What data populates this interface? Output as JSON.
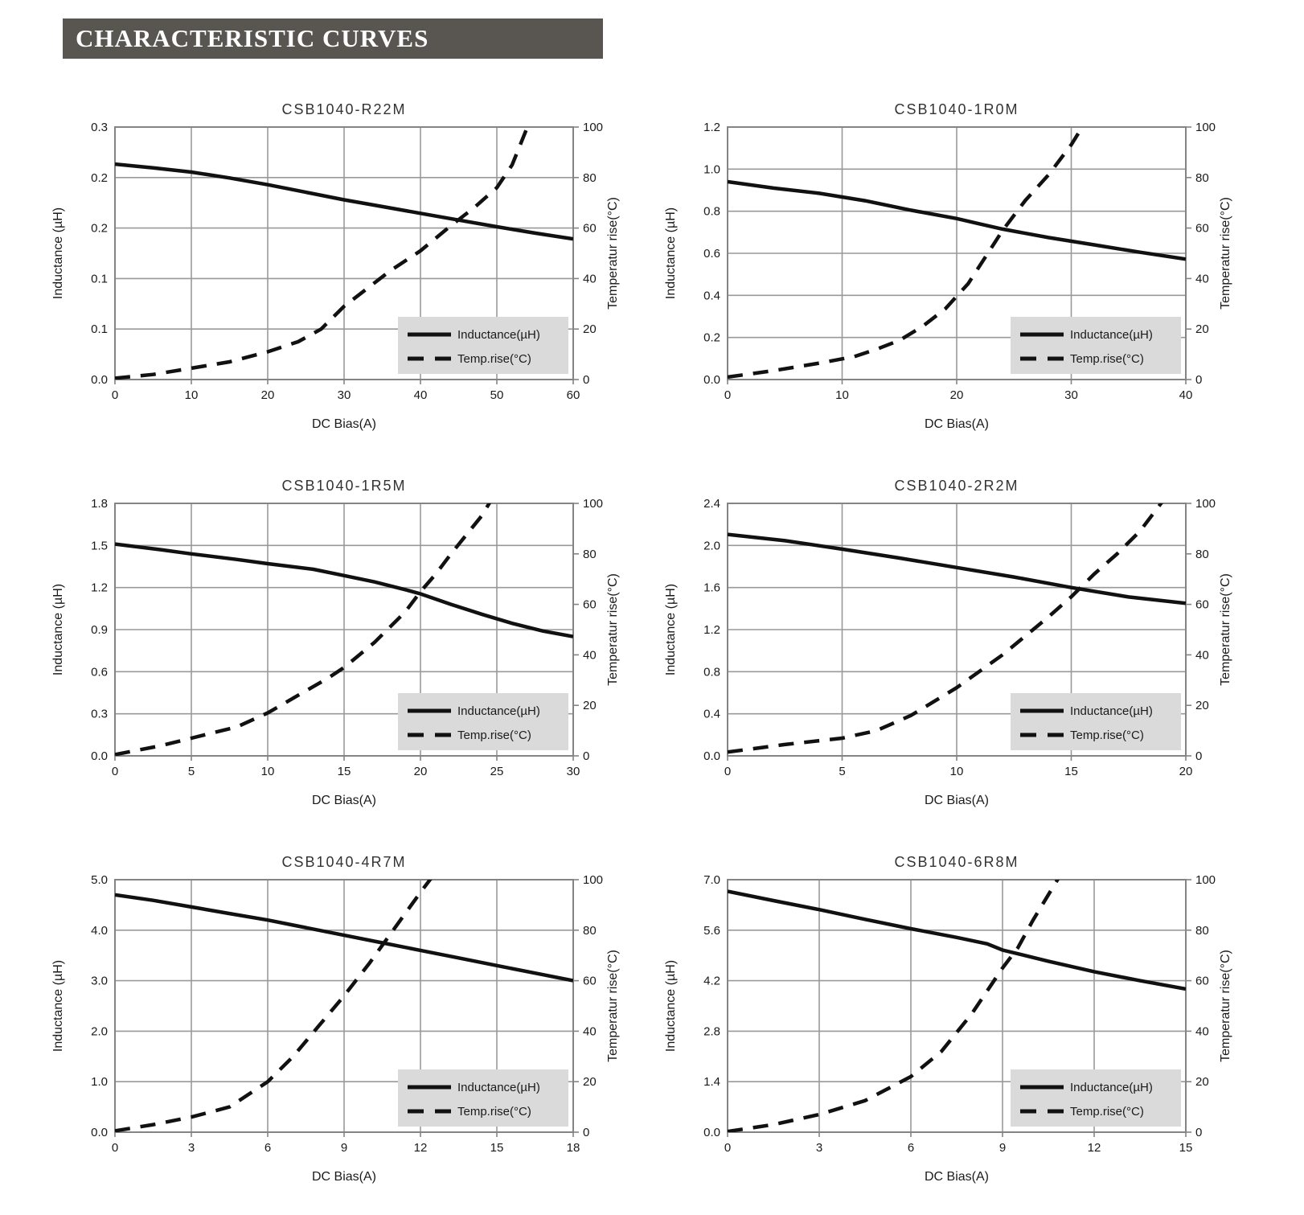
{
  "page": {
    "header": "CHARACTERISTIC CURVES",
    "colors": {
      "header_bg": "#595551",
      "header_fg": "#ffffff",
      "grid": "#999999",
      "border": "#848484",
      "curve": "#111111",
      "legend_bg": "#dadada",
      "text": "#1a1a1a"
    }
  },
  "chart_data": [
    {
      "type": "line",
      "title": "CSB1040-R22M",
      "xlabel": "DC Bias(A)",
      "ylabel_left": "Inductance (µH)",
      "ylabel_right": "Temperatur rise(°C)",
      "legend": [
        "Inductance(µH)",
        "Temp.rise(°C)"
      ],
      "x_range": [
        0,
        60
      ],
      "x_ticks": [
        0,
        10,
        20,
        30,
        40,
        50,
        60
      ],
      "y_left_range": [
        0,
        0.3
      ],
      "y_left_tick_labels": [
        "0.3",
        "0.2",
        "0.2",
        "0.1",
        "0.1",
        "0.0"
      ],
      "y_right_range": [
        0,
        100
      ],
      "y_right_tick_labels": [
        "100",
        "80",
        "60",
        "40",
        "20",
        "0"
      ],
      "series": [
        {
          "name": "Inductance(µH)",
          "axis": "left",
          "style": "solid",
          "points": [
            [
              0,
              0.256
            ],
            [
              5,
              0.2515
            ],
            [
              10,
              0.2465
            ],
            [
              15,
              0.2395
            ],
            [
              20,
              0.2315
            ],
            [
              25,
              0.2225
            ],
            [
              30,
              0.2135
            ],
            [
              35,
              0.2055
            ],
            [
              40,
              0.1975
            ],
            [
              45,
              0.1895
            ],
            [
              50,
              0.1815
            ],
            [
              55,
              0.174
            ],
            [
              60,
              0.167
            ]
          ]
        },
        {
          "name": "Temp.rise(°C)",
          "axis": "right",
          "style": "dashed",
          "points": [
            [
              0,
              0.5
            ],
            [
              5,
              2
            ],
            [
              10,
              4.5
            ],
            [
              15,
              7
            ],
            [
              20,
              11
            ],
            [
              24,
              15
            ],
            [
              27,
              20
            ],
            [
              30,
              29
            ],
            [
              33,
              36
            ],
            [
              36,
              43
            ],
            [
              40,
              51
            ],
            [
              44,
              61
            ],
            [
              47,
              68
            ],
            [
              50,
              76
            ],
            [
              52,
              85
            ],
            [
              54,
              100
            ],
            [
              55,
              106
            ]
          ]
        }
      ]
    },
    {
      "type": "line",
      "title": "CSB1040-1R0M",
      "xlabel": "DC Bias(A)",
      "ylabel_left": "Inductance (µH)",
      "ylabel_right": "Temperatur rise(°C)",
      "legend": [
        "Inductance(µH)",
        "Temp.rise(°C)"
      ],
      "x_range": [
        0,
        40
      ],
      "x_ticks": [
        0,
        10,
        20,
        30,
        40
      ],
      "y_left_range": [
        0,
        1.2
      ],
      "y_left_tick_labels": [
        "1.2",
        "1.0",
        "0.8",
        "0.6",
        "0.4",
        "0.2",
        "0.0"
      ],
      "y_right_range": [
        0,
        100
      ],
      "y_right_tick_labels": [
        "100",
        "80",
        "60",
        "40",
        "20",
        "0"
      ],
      "series": [
        {
          "name": "Inductance(µH)",
          "axis": "left",
          "style": "solid",
          "points": [
            [
              0,
              0.94
            ],
            [
              4,
              0.91
            ],
            [
              8,
              0.885
            ],
            [
              12,
              0.85
            ],
            [
              16,
              0.805
            ],
            [
              20,
              0.765
            ],
            [
              22,
              0.74
            ],
            [
              24,
              0.715
            ],
            [
              28,
              0.675
            ],
            [
              32,
              0.64
            ],
            [
              36,
              0.605
            ],
            [
              40,
              0.572
            ]
          ]
        },
        {
          "name": "Temp.rise(°C)",
          "axis": "right",
          "style": "dashed",
          "points": [
            [
              0,
              1
            ],
            [
              4,
              3.5
            ],
            [
              8,
              6.5
            ],
            [
              11,
              9
            ],
            [
              13,
              12
            ],
            [
              15,
              15.5
            ],
            [
              17,
              21
            ],
            [
              19,
              28
            ],
            [
              21,
              38
            ],
            [
              23,
              52
            ],
            [
              24,
              59
            ],
            [
              26,
              71
            ],
            [
              28,
              81
            ],
            [
              30,
              93
            ],
            [
              31.5,
              104
            ]
          ]
        }
      ]
    },
    {
      "type": "line",
      "title": "CSB1040-1R5M",
      "xlabel": "DC Bias(A)",
      "ylabel_left": "Inductance (µH)",
      "ylabel_right": "Temperatur rise(°C)",
      "legend": [
        "Inductance(µH)",
        "Temp.rise(°C)"
      ],
      "x_range": [
        0,
        30
      ],
      "x_ticks": [
        0,
        5,
        10,
        15,
        20,
        25,
        30
      ],
      "y_left_range": [
        0,
        1.8
      ],
      "y_left_tick_labels": [
        "1.8",
        "1.5",
        "1.2",
        "0.9",
        "0.6",
        "0.3",
        "0.0"
      ],
      "y_right_range": [
        0,
        100
      ],
      "y_right_tick_labels": [
        "100",
        "80",
        "60",
        "40",
        "20",
        "0"
      ],
      "series": [
        {
          "name": "Inductance(µH)",
          "axis": "left",
          "style": "solid",
          "points": [
            [
              0,
              1.51
            ],
            [
              3,
              1.47
            ],
            [
              5,
              1.44
            ],
            [
              8,
              1.4
            ],
            [
              10,
              1.37
            ],
            [
              13,
              1.33
            ],
            [
              15,
              1.285
            ],
            [
              17,
              1.24
            ],
            [
              19,
              1.185
            ],
            [
              20,
              1.155
            ],
            [
              22,
              1.08
            ],
            [
              24,
              1.01
            ],
            [
              26,
              0.945
            ],
            [
              28,
              0.89
            ],
            [
              30,
              0.85
            ]
          ]
        },
        {
          "name": "Temp.rise(°C)",
          "axis": "right",
          "style": "dashed",
          "points": [
            [
              0,
              0.5
            ],
            [
              3,
              4
            ],
            [
              5,
              7
            ],
            [
              8,
              11.5
            ],
            [
              10,
              17
            ],
            [
              12,
              24
            ],
            [
              14,
              31
            ],
            [
              15,
              35
            ],
            [
              17,
              45
            ],
            [
              19,
              57
            ],
            [
              20,
              65
            ],
            [
              21,
              72
            ],
            [
              22,
              80
            ],
            [
              24,
              95
            ],
            [
              24.8,
              103
            ]
          ]
        }
      ]
    },
    {
      "type": "line",
      "title": "CSB1040-2R2M",
      "xlabel": "DC Bias(A)",
      "ylabel_left": "Inductance (µH)",
      "ylabel_right": "Temperatur rise(°C)",
      "legend": [
        "Inductance(µH)",
        "Temp.rise(°C)"
      ],
      "x_range": [
        0,
        20
      ],
      "x_ticks": [
        0,
        5,
        10,
        15,
        20
      ],
      "y_left_range": [
        0,
        2.4
      ],
      "y_left_tick_labels": [
        "2.4",
        "2.0",
        "1.6",
        "1.2",
        "0.8",
        "0.4",
        "0.0"
      ],
      "y_right_range": [
        0,
        100
      ],
      "y_right_tick_labels": [
        "100",
        "80",
        "60",
        "40",
        "20",
        "0"
      ],
      "series": [
        {
          "name": "Inductance(µH)",
          "axis": "left",
          "style": "solid",
          "points": [
            [
              0,
              2.105
            ],
            [
              2.5,
              2.045
            ],
            [
              5,
              1.965
            ],
            [
              7.5,
              1.88
            ],
            [
              10,
              1.79
            ],
            [
              12.5,
              1.7
            ],
            [
              15,
              1.6
            ],
            [
              17.5,
              1.51
            ],
            [
              20,
              1.45
            ]
          ]
        },
        {
          "name": "Temp.rise(°C)",
          "axis": "right",
          "style": "dashed",
          "points": [
            [
              0,
              1.5
            ],
            [
              2.5,
              4.5
            ],
            [
              5,
              7
            ],
            [
              6.5,
              10
            ],
            [
              8,
              16
            ],
            [
              10,
              27
            ],
            [
              12,
              40
            ],
            [
              14,
              55
            ],
            [
              15,
              63
            ],
            [
              16,
              72
            ],
            [
              17,
              80
            ],
            [
              18,
              89
            ],
            [
              19,
              101
            ]
          ]
        }
      ]
    },
    {
      "type": "line",
      "title": "CSB1040-4R7M",
      "xlabel": "DC Bias(A)",
      "ylabel_left": "Inductance (µH)",
      "ylabel_right": "Temperatur rise(°C)",
      "legend": [
        "Inductance(µH)",
        "Temp.rise(°C)"
      ],
      "x_range": [
        0,
        18
      ],
      "x_ticks": [
        0,
        3,
        6,
        9,
        12,
        15,
        18
      ],
      "y_left_range": [
        0,
        5.0
      ],
      "y_left_tick_labels": [
        "5.0",
        "4.0",
        "3.0",
        "2.0",
        "1.0",
        "0.0"
      ],
      "y_right_range": [
        0,
        100
      ],
      "y_right_tick_labels": [
        "100",
        "80",
        "60",
        "40",
        "20",
        "0"
      ],
      "series": [
        {
          "name": "Inductance(µH)",
          "axis": "left",
          "style": "solid",
          "points": [
            [
              0,
              4.7
            ],
            [
              1.5,
              4.59
            ],
            [
              3,
              4.46
            ],
            [
              4.5,
              4.33
            ],
            [
              6,
              4.2
            ],
            [
              7,
              4.1
            ],
            [
              9,
              3.9
            ],
            [
              10.5,
              3.75
            ],
            [
              12,
              3.6
            ],
            [
              13.5,
              3.45
            ],
            [
              15,
              3.3
            ],
            [
              16.5,
              3.15
            ],
            [
              18,
              3.0
            ]
          ]
        },
        {
          "name": "Temp.rise(°C)",
          "axis": "right",
          "style": "dashed",
          "points": [
            [
              0,
              0.5
            ],
            [
              1.5,
              3
            ],
            [
              3,
              6
            ],
            [
              4.5,
              10
            ],
            [
              6,
              20
            ],
            [
              7,
              30
            ],
            [
              8,
              42
            ],
            [
              9,
              54
            ],
            [
              10,
              67
            ],
            [
              11,
              81
            ],
            [
              12,
              95
            ],
            [
              12.6,
              103
            ]
          ]
        }
      ]
    },
    {
      "type": "line",
      "title": "CSB1040-6R8M",
      "xlabel": "DC Bias(A)",
      "ylabel_left": "Inductance (µH)",
      "ylabel_right": "Temperatur rise(°C)",
      "legend": [
        "Inductance(µH)",
        "Temp.rise(°C)"
      ],
      "x_range": [
        0,
        15
      ],
      "x_ticks": [
        0,
        3,
        6,
        9,
        12,
        15
      ],
      "y_left_range": [
        0,
        7.0
      ],
      "y_left_tick_labels": [
        "7.0",
        "5.6",
        "4.2",
        "2.8",
        "1.4",
        "0.0"
      ],
      "y_right_range": [
        0,
        100
      ],
      "y_right_tick_labels": [
        "100",
        "80",
        "60",
        "40",
        "20",
        "0"
      ],
      "series": [
        {
          "name": "Inductance(µH)",
          "axis": "left",
          "style": "solid",
          "points": [
            [
              0,
              6.68
            ],
            [
              1.5,
              6.42
            ],
            [
              3,
              6.17
            ],
            [
              4.5,
              5.9
            ],
            [
              6,
              5.64
            ],
            [
              7.5,
              5.4
            ],
            [
              8.5,
              5.22
            ],
            [
              9,
              5.05
            ],
            [
              10.5,
              4.74
            ],
            [
              12,
              4.45
            ],
            [
              13.5,
              4.2
            ],
            [
              15,
              3.97
            ]
          ]
        },
        {
          "name": "Temp.rise(°C)",
          "axis": "right",
          "style": "dashed",
          "points": [
            [
              0,
              0.3
            ],
            [
              1.5,
              3
            ],
            [
              3,
              7
            ],
            [
              4.5,
              12.5
            ],
            [
              6,
              22
            ],
            [
              7,
              32
            ],
            [
              8,
              47
            ],
            [
              9,
              65
            ],
            [
              9.5,
              73
            ],
            [
              10,
              84
            ],
            [
              10.9,
              102
            ]
          ]
        }
      ]
    }
  ]
}
